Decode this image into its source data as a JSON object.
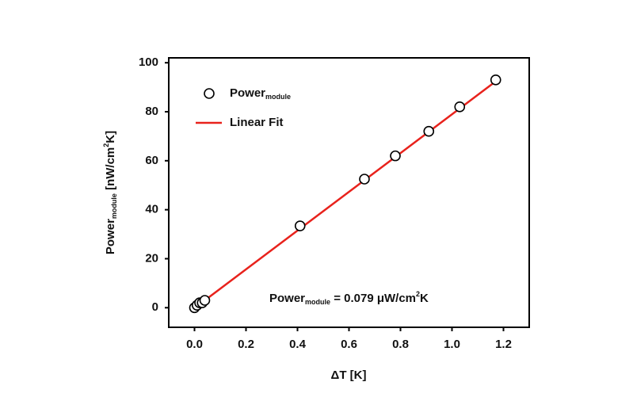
{
  "chart_data": {
    "type": "scatter",
    "ylabel_parts": [
      "Power",
      "module",
      " [nW/cm",
      "2",
      "K]"
    ],
    "xlabel": "ΔT [K]",
    "annotation_parts": [
      "Power",
      "module",
      " = 0.079 μW/cm",
      "2",
      "K"
    ],
    "series": [
      {
        "name": "Power",
        "name_sub": "module",
        "mode": "markers",
        "color": "#000000",
        "x": [
          0.0,
          0.01,
          0.02,
          0.03,
          0.04,
          0.41,
          0.66,
          0.78,
          0.91,
          1.03,
          1.17
        ],
        "values": [
          0,
          1,
          2,
          2,
          3,
          33.4,
          52.5,
          62,
          72,
          82,
          93
        ]
      },
      {
        "name": "Linear Fit",
        "mode": "line",
        "color": "#e8221c",
        "x": [
          0.04,
          1.17
        ],
        "values": [
          3,
          92.4
        ]
      }
    ],
    "xlim": [
      -0.1,
      1.3
    ],
    "xticks": [
      {
        "value": 0,
        "label": "0.0"
      },
      0.2,
      0.4,
      0.6,
      0.8,
      {
        "value": 1,
        "label": "1.0"
      },
      1.2
    ],
    "ylim": [
      -8,
      102
    ],
    "yticks": [
      0,
      20,
      40,
      60,
      80,
      100
    ]
  }
}
